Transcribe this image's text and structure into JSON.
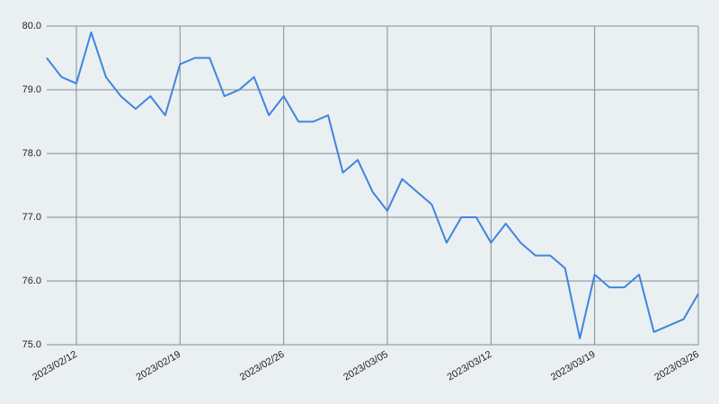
{
  "chart_data": {
    "type": "line",
    "x": [
      "2023/02/10",
      "2023/02/11",
      "2023/02/12",
      "2023/02/13",
      "2023/02/14",
      "2023/02/15",
      "2023/02/16",
      "2023/02/17",
      "2023/02/18",
      "2023/02/19",
      "2023/02/20",
      "2023/02/21",
      "2023/02/22",
      "2023/02/23",
      "2023/02/24",
      "2023/02/25",
      "2023/02/26",
      "2023/02/27",
      "2023/02/28",
      "2023/03/01",
      "2023/03/02",
      "2023/03/03",
      "2023/03/04",
      "2023/03/05",
      "2023/03/06",
      "2023/03/07",
      "2023/03/08",
      "2023/03/09",
      "2023/03/10",
      "2023/03/11",
      "2023/03/12",
      "2023/03/13",
      "2023/03/14",
      "2023/03/15",
      "2023/03/16",
      "2023/03/17",
      "2023/03/18",
      "2023/03/19",
      "2023/03/20",
      "2023/03/21",
      "2023/03/22",
      "2023/03/23",
      "2023/03/24",
      "2023/03/25",
      "2023/03/26"
    ],
    "series": [
      {
        "color": "#3f85e0",
        "values": [
          79.5,
          79.2,
          79.1,
          79.9,
          79.2,
          78.9,
          78.7,
          78.9,
          78.6,
          79.4,
          79.5,
          79.5,
          78.9,
          79.0,
          79.2,
          78.6,
          78.9,
          78.5,
          78.5,
          78.6,
          77.7,
          77.9,
          77.4,
          77.1,
          77.6,
          77.4,
          77.2,
          76.6,
          77.0,
          77.0,
          76.6,
          76.9,
          76.6,
          76.4,
          76.4,
          76.2,
          75.1,
          76.1,
          75.9,
          75.9,
          76.1,
          75.2,
          75.3,
          75.4,
          75.8
        ]
      }
    ],
    "xlim": [
      "2023/02/10",
      "2023/03/26"
    ],
    "xticks": [
      "2023/02/12",
      "2023/02/19",
      "2023/02/26",
      "2023/03/05",
      "2023/03/12",
      "2023/03/19",
      "2023/03/26"
    ],
    "ylim": [
      75,
      80
    ],
    "yticks": [
      {
        "value": 75,
        "label": "75.0"
      },
      {
        "value": 76,
        "label": "76.0"
      },
      {
        "value": 77,
        "label": "77.0"
      },
      {
        "value": 78,
        "label": "78.0"
      },
      {
        "value": 79,
        "label": "79.0"
      },
      {
        "value": 80,
        "label": "80.0"
      }
    ],
    "grid": true
  }
}
